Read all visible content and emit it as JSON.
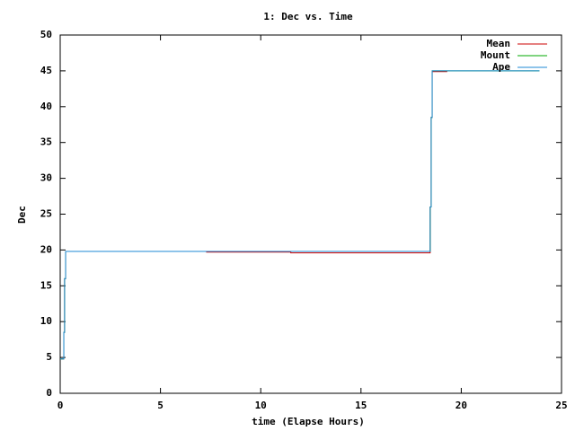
{
  "chart_data": {
    "type": "line",
    "title": "1: Dec vs. Time",
    "xlabel": "time (Elapse Hours)",
    "ylabel": "Dec",
    "xlim": [
      0,
      25
    ],
    "ylim": [
      0,
      50
    ],
    "xticks": [
      0,
      5,
      10,
      15,
      20,
      25
    ],
    "yticks": [
      0,
      5,
      10,
      15,
      20,
      25,
      30,
      35,
      40,
      45,
      50
    ],
    "grid": false,
    "legend": "top right",
    "series": [
      {
        "name": "Mean",
        "color": "#cc0000",
        "x": [
          0,
          0.18,
          0.18,
          0.22,
          0.22,
          0.27,
          0.27,
          7.3,
          7.3,
          11.5,
          11.5,
          18.45,
          18.45,
          18.5,
          18.5,
          18.55,
          18.55,
          19.3
        ],
        "values": [
          4.8,
          4.8,
          8.5,
          8.5,
          16,
          16,
          19.8,
          19.8,
          19.7,
          19.7,
          19.6,
          19.6,
          26,
          26,
          38.5,
          38.5,
          44.9,
          44.9
        ]
      },
      {
        "name": "Mount",
        "color": "#00aa00",
        "x": [
          0,
          0.18,
          0.18,
          0.22,
          0.22,
          0.27,
          0.27,
          18.45,
          18.45,
          18.5,
          18.5,
          18.55,
          18.55,
          23.9
        ],
        "values": [
          4.8,
          4.8,
          8.5,
          8.5,
          16,
          16,
          19.8,
          19.8,
          26,
          26,
          38.5,
          38.5,
          45,
          45
        ]
      },
      {
        "name": "Ape",
        "color": "#1e88d4",
        "x": [
          0,
          0.18,
          0.18,
          0.22,
          0.22,
          0.27,
          0.27,
          18.45,
          18.45,
          18.5,
          18.5,
          18.55,
          18.55,
          23.9
        ],
        "values": [
          4.8,
          4.8,
          8.5,
          8.5,
          16,
          16,
          19.8,
          19.8,
          26,
          26,
          38.5,
          38.5,
          45,
          45
        ]
      }
    ]
  }
}
